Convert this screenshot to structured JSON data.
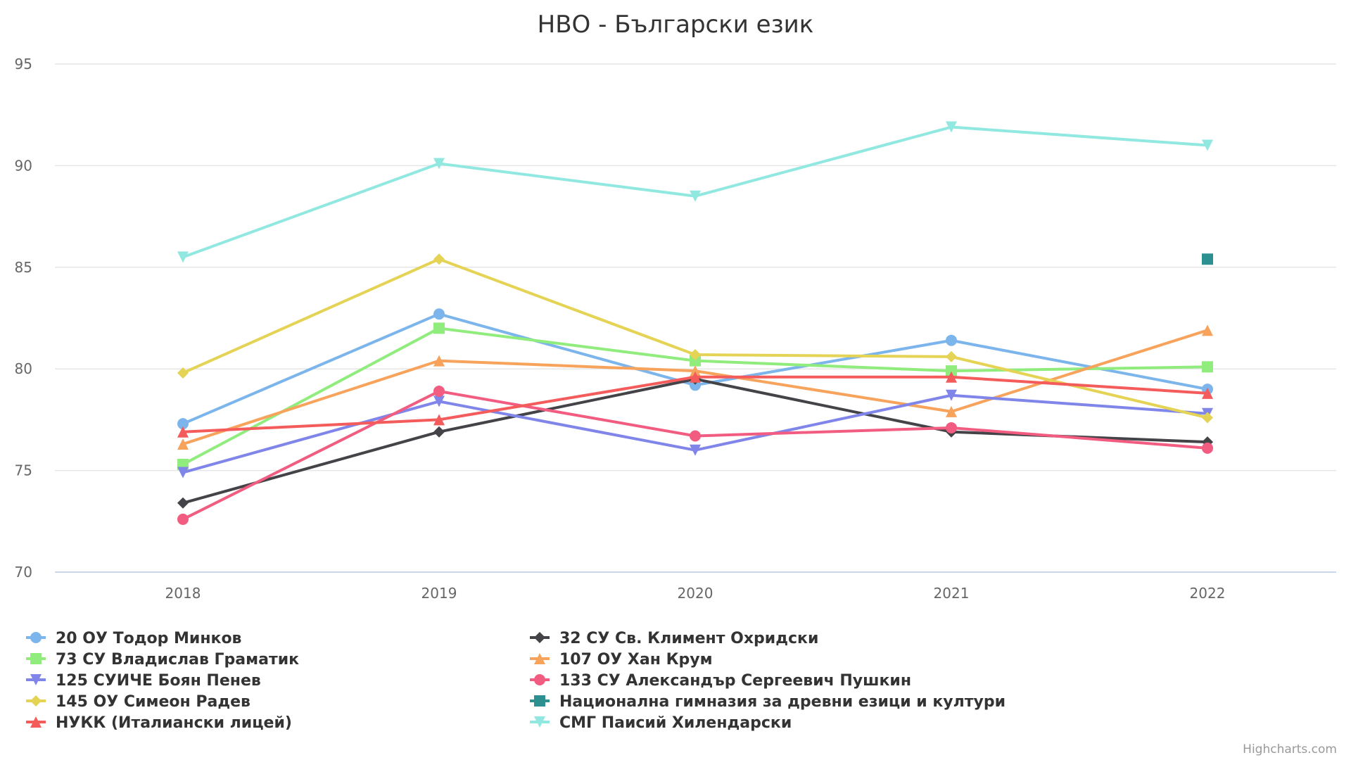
{
  "chart_data": {
    "type": "line",
    "title": "НВО - Български език",
    "xlabel": "",
    "ylabel": "",
    "x": [
      "2018",
      "2019",
      "2020",
      "2021",
      "2022"
    ],
    "ylim": [
      70,
      95
    ],
    "yticks": [
      70,
      75,
      80,
      85,
      90,
      95
    ],
    "grid": true,
    "legend_placement": "bottom",
    "series": [
      {
        "name": "20 ОУ Тодор Минков",
        "color": "#7cb5ec",
        "marker": "circle",
        "values": [
          77.3,
          82.7,
          79.2,
          81.4,
          79.0
        ]
      },
      {
        "name": "32 СУ Св. Климент Охридски",
        "color": "#434348",
        "marker": "diamond",
        "values": [
          73.4,
          76.9,
          79.5,
          76.9,
          76.4
        ]
      },
      {
        "name": "73 СУ Владислав Граматик",
        "color": "#90ed7d",
        "marker": "square",
        "values": [
          75.3,
          82.0,
          80.4,
          79.9,
          80.1
        ]
      },
      {
        "name": "107 ОУ Хан Крум",
        "color": "#f7a35c",
        "marker": "triangle",
        "values": [
          76.3,
          80.4,
          79.9,
          77.9,
          81.9
        ]
      },
      {
        "name": "125 СУИЧЕ Боян Пенев",
        "color": "#8085e9",
        "marker": "triangle-down",
        "values": [
          74.9,
          78.4,
          76.0,
          78.7,
          77.8
        ]
      },
      {
        "name": "133 СУ Александър Сергеевич Пушкин",
        "color": "#f15c80",
        "marker": "circle",
        "values": [
          72.6,
          78.9,
          76.7,
          77.1,
          76.1
        ]
      },
      {
        "name": "145 ОУ Симеон Радев",
        "color": "#e4d354",
        "marker": "diamond",
        "values": [
          79.8,
          85.4,
          80.7,
          80.6,
          77.6
        ]
      },
      {
        "name": "Национална гимназия за древни езици и култури",
        "color": "#2b908f",
        "marker": "square",
        "values": [
          null,
          null,
          null,
          null,
          85.4
        ]
      },
      {
        "name": "НУКК (Италиански лицей)",
        "color": "#f45b5b",
        "marker": "triangle",
        "values": [
          76.9,
          77.5,
          79.6,
          79.6,
          78.8
        ]
      },
      {
        "name": "СМГ Паисий Хилендарски",
        "color": "#91e8e1",
        "marker": "triangle-down",
        "values": [
          85.5,
          90.1,
          88.5,
          91.9,
          91.0
        ]
      }
    ],
    "credits": "Highcharts.com"
  }
}
